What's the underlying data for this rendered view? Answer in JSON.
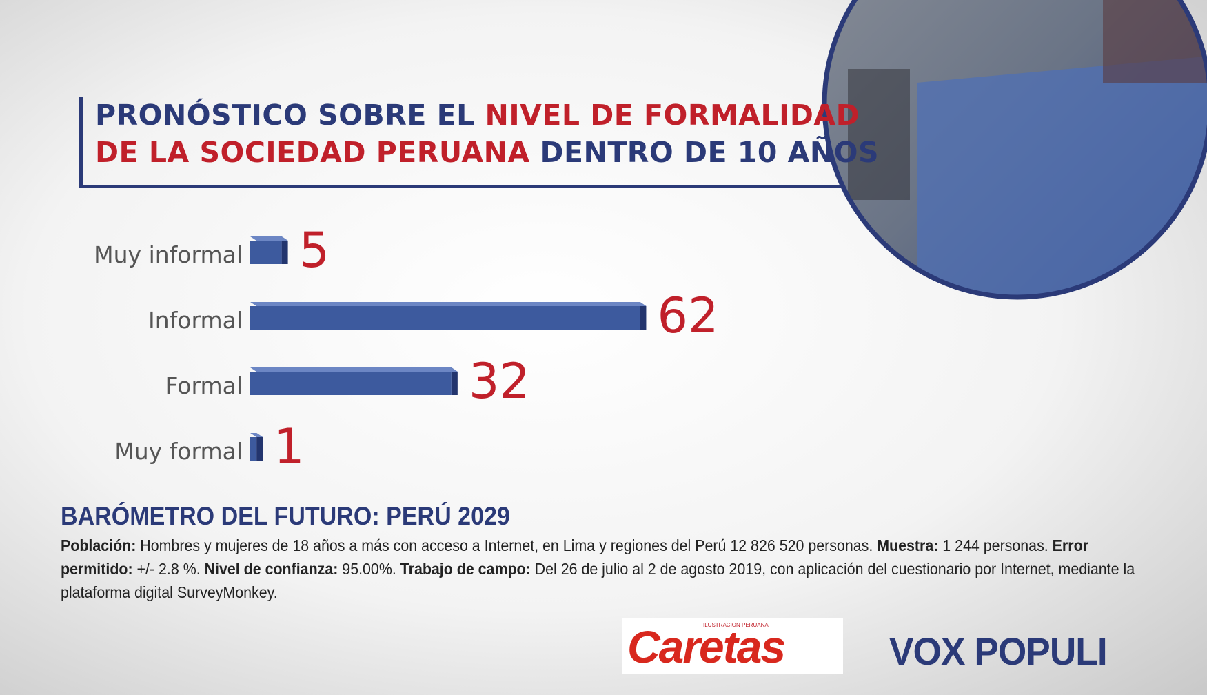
{
  "title": {
    "line1": [
      "PRONÓSTICO SOBRE EL ",
      "NIVEL DE FORMALIDAD"
    ],
    "line2": [
      "DE LA SOCIEDAD PERUANA",
      " DENTRO DE 10 AÑOS"
    ]
  },
  "chart_data": {
    "type": "bar",
    "orientation": "horizontal",
    "categories": [
      "Muy informal",
      "Informal",
      "Formal",
      "Muy formal"
    ],
    "values": [
      5,
      62,
      32,
      1
    ],
    "color": "#3d5a9e",
    "value_label_color": "#c0202a"
  },
  "footer": {
    "heading": "BARÓMETRO DEL FUTURO: PERÚ 2029",
    "notes": [
      {
        "label": "Población:",
        "text": " Hombres y mujeres de 18 años a más con acceso a Internet, en Lima y regiones del Perú 12 826 520 personas. "
      },
      {
        "label": "Muestra:",
        "text": " 1 244 personas. "
      },
      {
        "label": "Error permitido:",
        "text": " +/- 2.8 %. "
      },
      {
        "label": "Nivel de confianza:",
        "text": " 95.00%. "
      },
      {
        "label": "Trabajo de campo:",
        "text": " Del 26 de julio al 2 de agosto 2019, con aplicación del cuestionario por Internet, mediante la plataforma digital SurveyMonkey."
      }
    ]
  },
  "logos": {
    "caretas_tag": "ILUSTRACION PERUANA",
    "caretas": "Caretas",
    "voxpopuli": "VOX POPULI"
  }
}
